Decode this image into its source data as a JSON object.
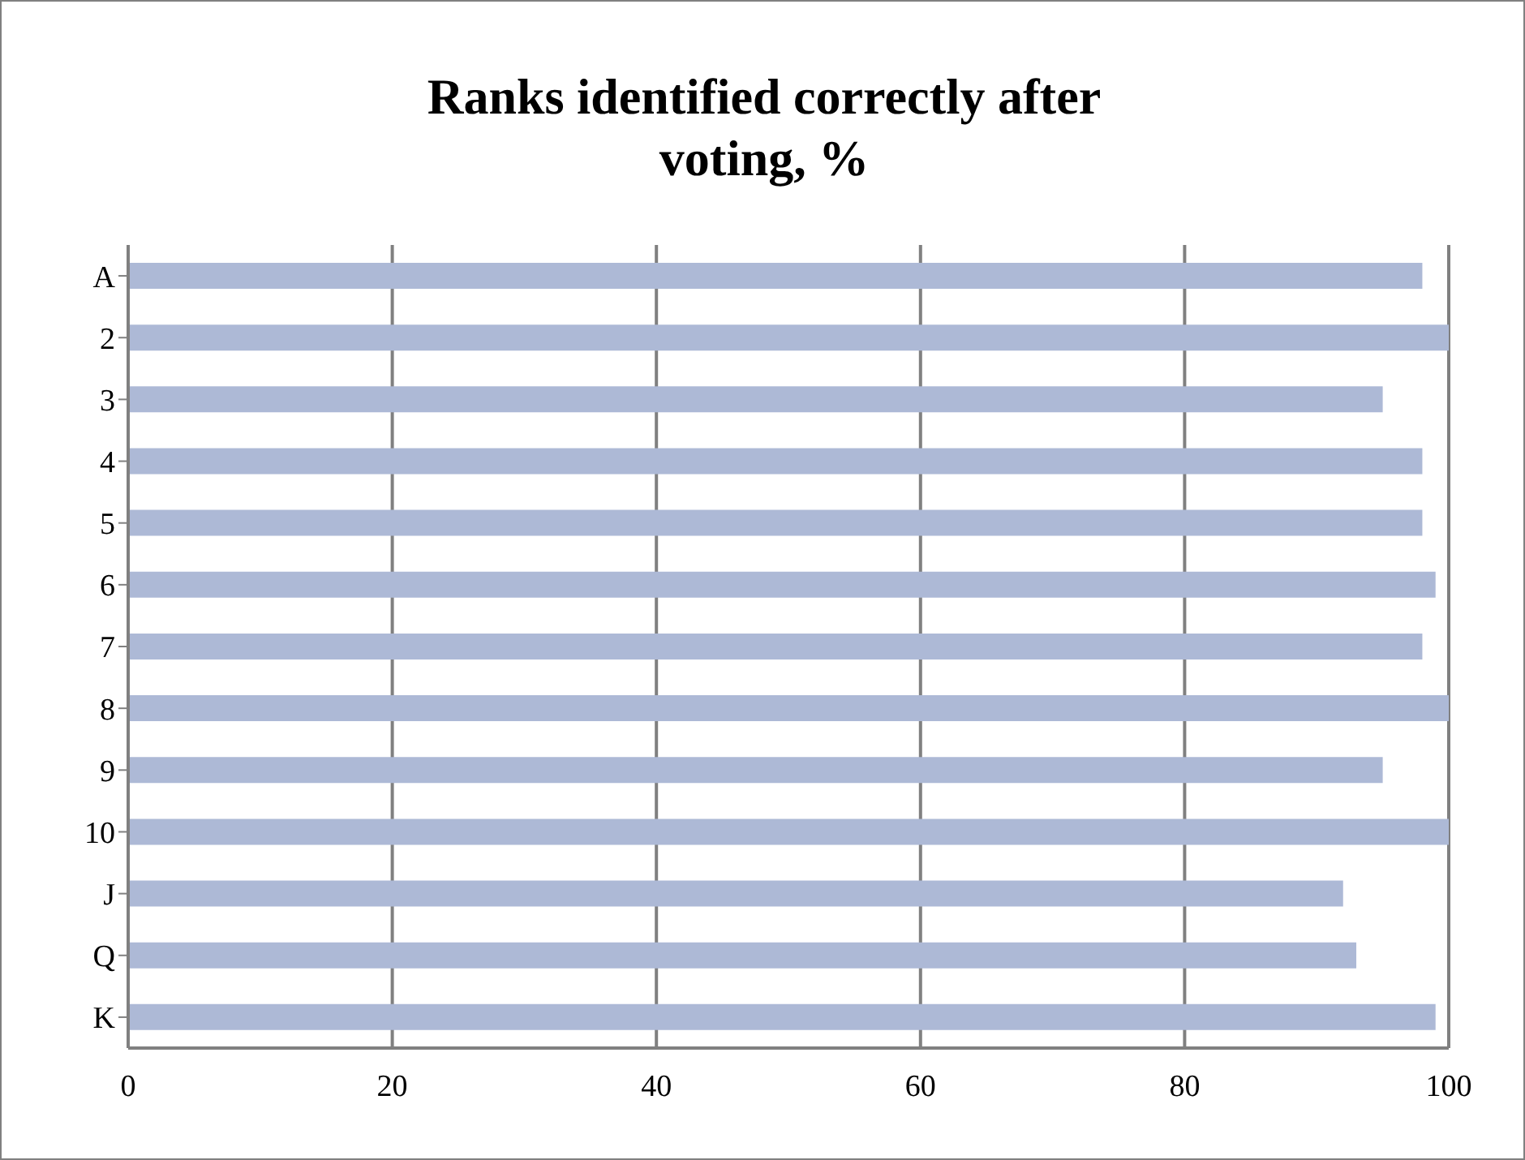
{
  "chart_data": {
    "type": "bar",
    "orientation": "horizontal",
    "title": "Ranks identified correctly after voting, %",
    "categories": [
      "A",
      "2",
      "3",
      "4",
      "5",
      "6",
      "7",
      "8",
      "9",
      "10",
      "J",
      "Q",
      "K"
    ],
    "values": [
      98,
      100,
      95,
      98,
      98,
      99,
      98,
      100,
      95,
      100,
      92,
      93,
      99
    ],
    "color": "#adb9d6",
    "xlim": [
      0,
      100
    ],
    "xticks": [
      0,
      20,
      40,
      60,
      80,
      100
    ],
    "grid": "x"
  }
}
